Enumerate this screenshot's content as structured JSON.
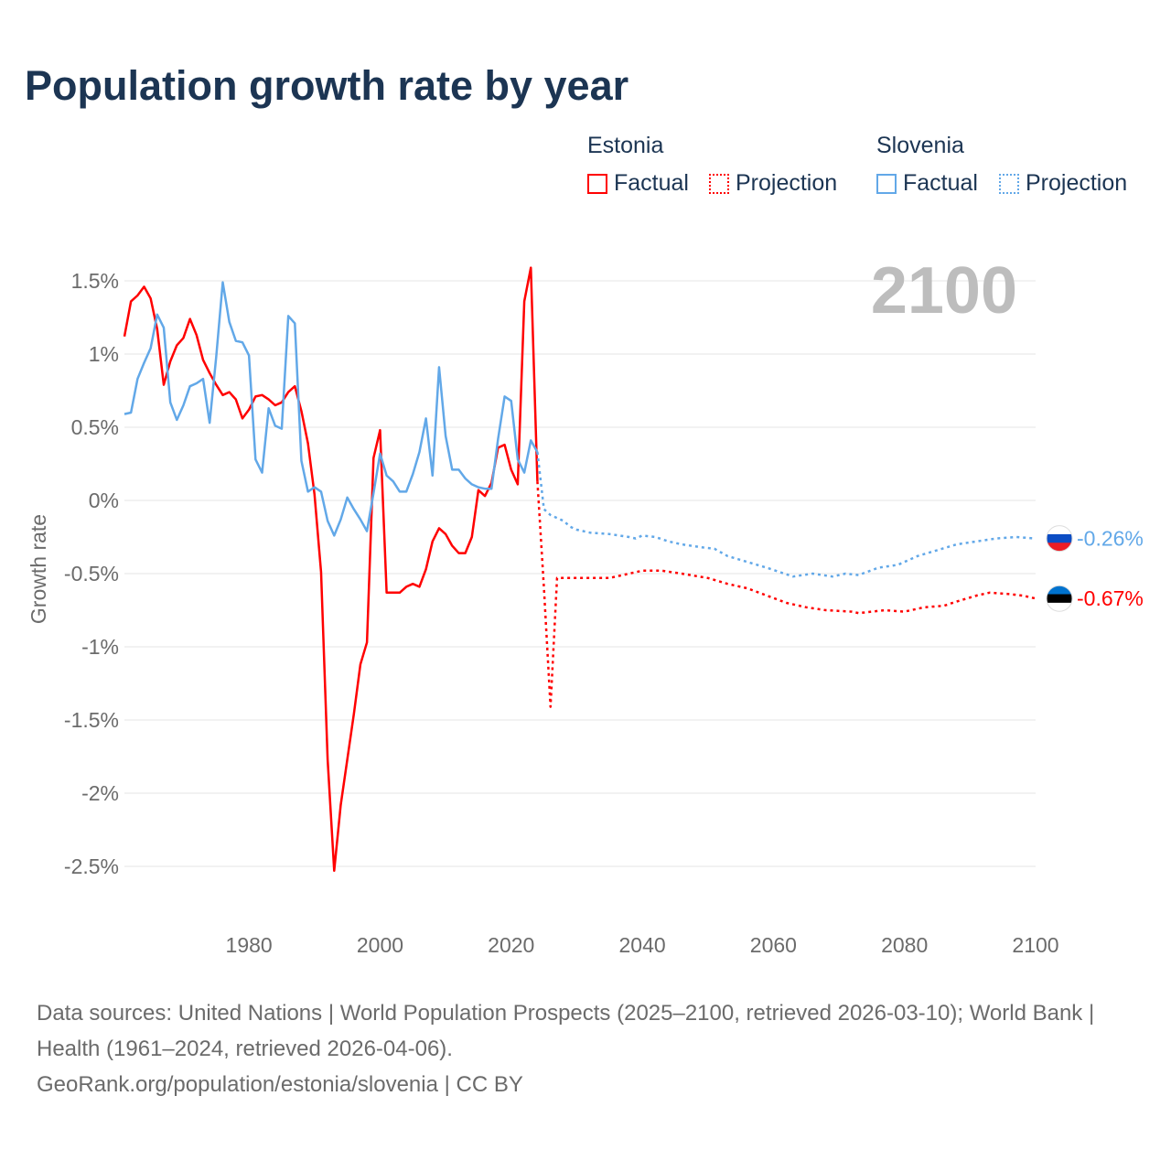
{
  "title": "Population growth rate by year",
  "legend": {
    "groups": [
      {
        "name": "Estonia",
        "factual": "Factual",
        "projection": "Projection",
        "color": "#ff0000"
      },
      {
        "name": "Slovenia",
        "factual": "Factual",
        "projection": "Projection",
        "color": "#62a8e8"
      }
    ]
  },
  "footer": {
    "sources": "Data sources: United Nations | World Population Prospects (2025–2100, retrieved 2026-03-10); World Bank | Health (1961–2024, retrieved 2026-04-06).",
    "credit": "GeoRank.org/population/estonia/slovenia | CC BY"
  },
  "chart_data": {
    "type": "line",
    "title": "Population growth rate by year",
    "xlabel": "",
    "ylabel": "Growth rate",
    "current_year_label": "2100",
    "xlim": [
      1961,
      2100
    ],
    "ylim": [
      -2.75,
      1.75
    ],
    "xticks": [
      1980,
      2000,
      2020,
      2040,
      2060,
      2080,
      2100
    ],
    "yticks": [
      1.5,
      1,
      0.5,
      0,
      -0.5,
      -1,
      -1.5,
      -2,
      -2.5
    ],
    "ytick_labels": [
      "1.5%",
      "1%",
      "0.5%",
      "0%",
      "-0.5%",
      "-1%",
      "-1.5%",
      "-2%",
      "-2.5%"
    ],
    "grid": true,
    "series": [
      {
        "name": "Estonia",
        "color": "#ff0000",
        "end_label": "-0.67%",
        "factual": {
          "x": [
            1961,
            1962,
            1963,
            1964,
            1965,
            1966,
            1967,
            1968,
            1969,
            1970,
            1971,
            1972,
            1973,
            1974,
            1975,
            1976,
            1977,
            1978,
            1979,
            1980,
            1981,
            1982,
            1983,
            1984,
            1985,
            1986,
            1987,
            1988,
            1989,
            1990,
            1991,
            1992,
            1993,
            1994,
            1995,
            1996,
            1997,
            1998,
            1999,
            2000,
            2001,
            2002,
            2003,
            2004,
            2005,
            2006,
            2007,
            2008,
            2009,
            2010,
            2011,
            2012,
            2013,
            2014,
            2015,
            2016,
            2017,
            2018,
            2019,
            2020,
            2021,
            2022,
            2023,
            2024
          ],
          "y": [
            1.12,
            1.36,
            1.4,
            1.46,
            1.38,
            1.17,
            0.79,
            0.95,
            1.06,
            1.11,
            1.24,
            1.13,
            0.96,
            0.87,
            0.79,
            0.72,
            0.74,
            0.69,
            0.56,
            0.62,
            0.71,
            0.72,
            0.69,
            0.65,
            0.67,
            0.74,
            0.78,
            0.61,
            0.39,
            0.04,
            -0.49,
            -1.77,
            -2.53,
            -2.08,
            -1.77,
            -1.46,
            -1.12,
            -0.97,
            0.29,
            0.48,
            -0.63,
            -0.63,
            -0.63,
            -0.59,
            -0.57,
            -0.59,
            -0.47,
            -0.28,
            -0.19,
            -0.23,
            -0.31,
            -0.36,
            -0.36,
            -0.25,
            0.07,
            0.03,
            0.12,
            0.36,
            0.38,
            0.21,
            0.11,
            1.36,
            1.59,
            0.13
          ]
        },
        "projection": {
          "x": [
            2024,
            2025,
            2026,
            2027,
            2030,
            2035,
            2038,
            2040,
            2043,
            2046,
            2050,
            2053,
            2056,
            2059,
            2062,
            2065,
            2068,
            2072,
            2073,
            2077,
            2080,
            2083,
            2086,
            2088,
            2091,
            2093,
            2096,
            2098,
            2100
          ],
          "y": [
            0.13,
            -0.6,
            -1.41,
            -0.53,
            -0.53,
            -0.53,
            -0.5,
            -0.48,
            -0.48,
            -0.5,
            -0.53,
            -0.57,
            -0.6,
            -0.65,
            -0.7,
            -0.73,
            -0.75,
            -0.76,
            -0.77,
            -0.75,
            -0.76,
            -0.73,
            -0.72,
            -0.69,
            -0.65,
            -0.63,
            -0.64,
            -0.65,
            -0.67
          ]
        }
      },
      {
        "name": "Slovenia",
        "color": "#62a8e8",
        "end_label": "-0.26%",
        "factual": {
          "x": [
            1961,
            1962,
            1963,
            1964,
            1965,
            1966,
            1967,
            1968,
            1969,
            1970,
            1971,
            1972,
            1973,
            1974,
            1975,
            1976,
            1977,
            1978,
            1979,
            1980,
            1981,
            1982,
            1983,
            1984,
            1985,
            1986,
            1987,
            1988,
            1989,
            1990,
            1991,
            1992,
            1993,
            1994,
            1995,
            1996,
            1997,
            1998,
            1999,
            2000,
            2001,
            2002,
            2003,
            2004,
            2005,
            2006,
            2007,
            2008,
            2009,
            2010,
            2011,
            2012,
            2013,
            2014,
            2015,
            2016,
            2017,
            2018,
            2019,
            2020,
            2021,
            2022,
            2023,
            2024
          ],
          "y": [
            0.59,
            0.6,
            0.83,
            0.94,
            1.04,
            1.27,
            1.18,
            0.67,
            0.55,
            0.65,
            0.78,
            0.8,
            0.83,
            0.53,
            0.98,
            1.49,
            1.22,
            1.09,
            1.08,
            0.99,
            0.28,
            0.19,
            0.63,
            0.51,
            0.49,
            1.26,
            1.21,
            0.27,
            0.06,
            0.09,
            0.06,
            -0.14,
            -0.24,
            -0.13,
            0.02,
            -0.06,
            -0.13,
            -0.21,
            0.05,
            0.32,
            0.17,
            0.13,
            0.06,
            0.06,
            0.18,
            0.33,
            0.56,
            0.17,
            0.91,
            0.44,
            0.21,
            0.21,
            0.15,
            0.11,
            0.09,
            0.08,
            0.08,
            0.42,
            0.71,
            0.68,
            0.28,
            0.19,
            0.41,
            0.33
          ]
        },
        "projection": {
          "x": [
            2024,
            2025,
            2026,
            2027,
            2028,
            2029,
            2030,
            2032,
            2035,
            2038,
            2039,
            2040,
            2042,
            2044,
            2046,
            2049,
            2051,
            2053,
            2056,
            2059,
            2061,
            2063,
            2066,
            2069,
            2071,
            2073,
            2076,
            2079,
            2082,
            2085,
            2088,
            2091,
            2094,
            2097,
            2100
          ],
          "y": [
            0.33,
            -0.06,
            -0.1,
            -0.12,
            -0.14,
            -0.18,
            -0.2,
            -0.22,
            -0.23,
            -0.25,
            -0.26,
            -0.24,
            -0.25,
            -0.28,
            -0.3,
            -0.32,
            -0.33,
            -0.38,
            -0.42,
            -0.46,
            -0.49,
            -0.52,
            -0.5,
            -0.52,
            -0.5,
            -0.51,
            -0.46,
            -0.44,
            -0.38,
            -0.34,
            -0.3,
            -0.28,
            -0.26,
            -0.25,
            -0.26
          ]
        }
      }
    ]
  }
}
